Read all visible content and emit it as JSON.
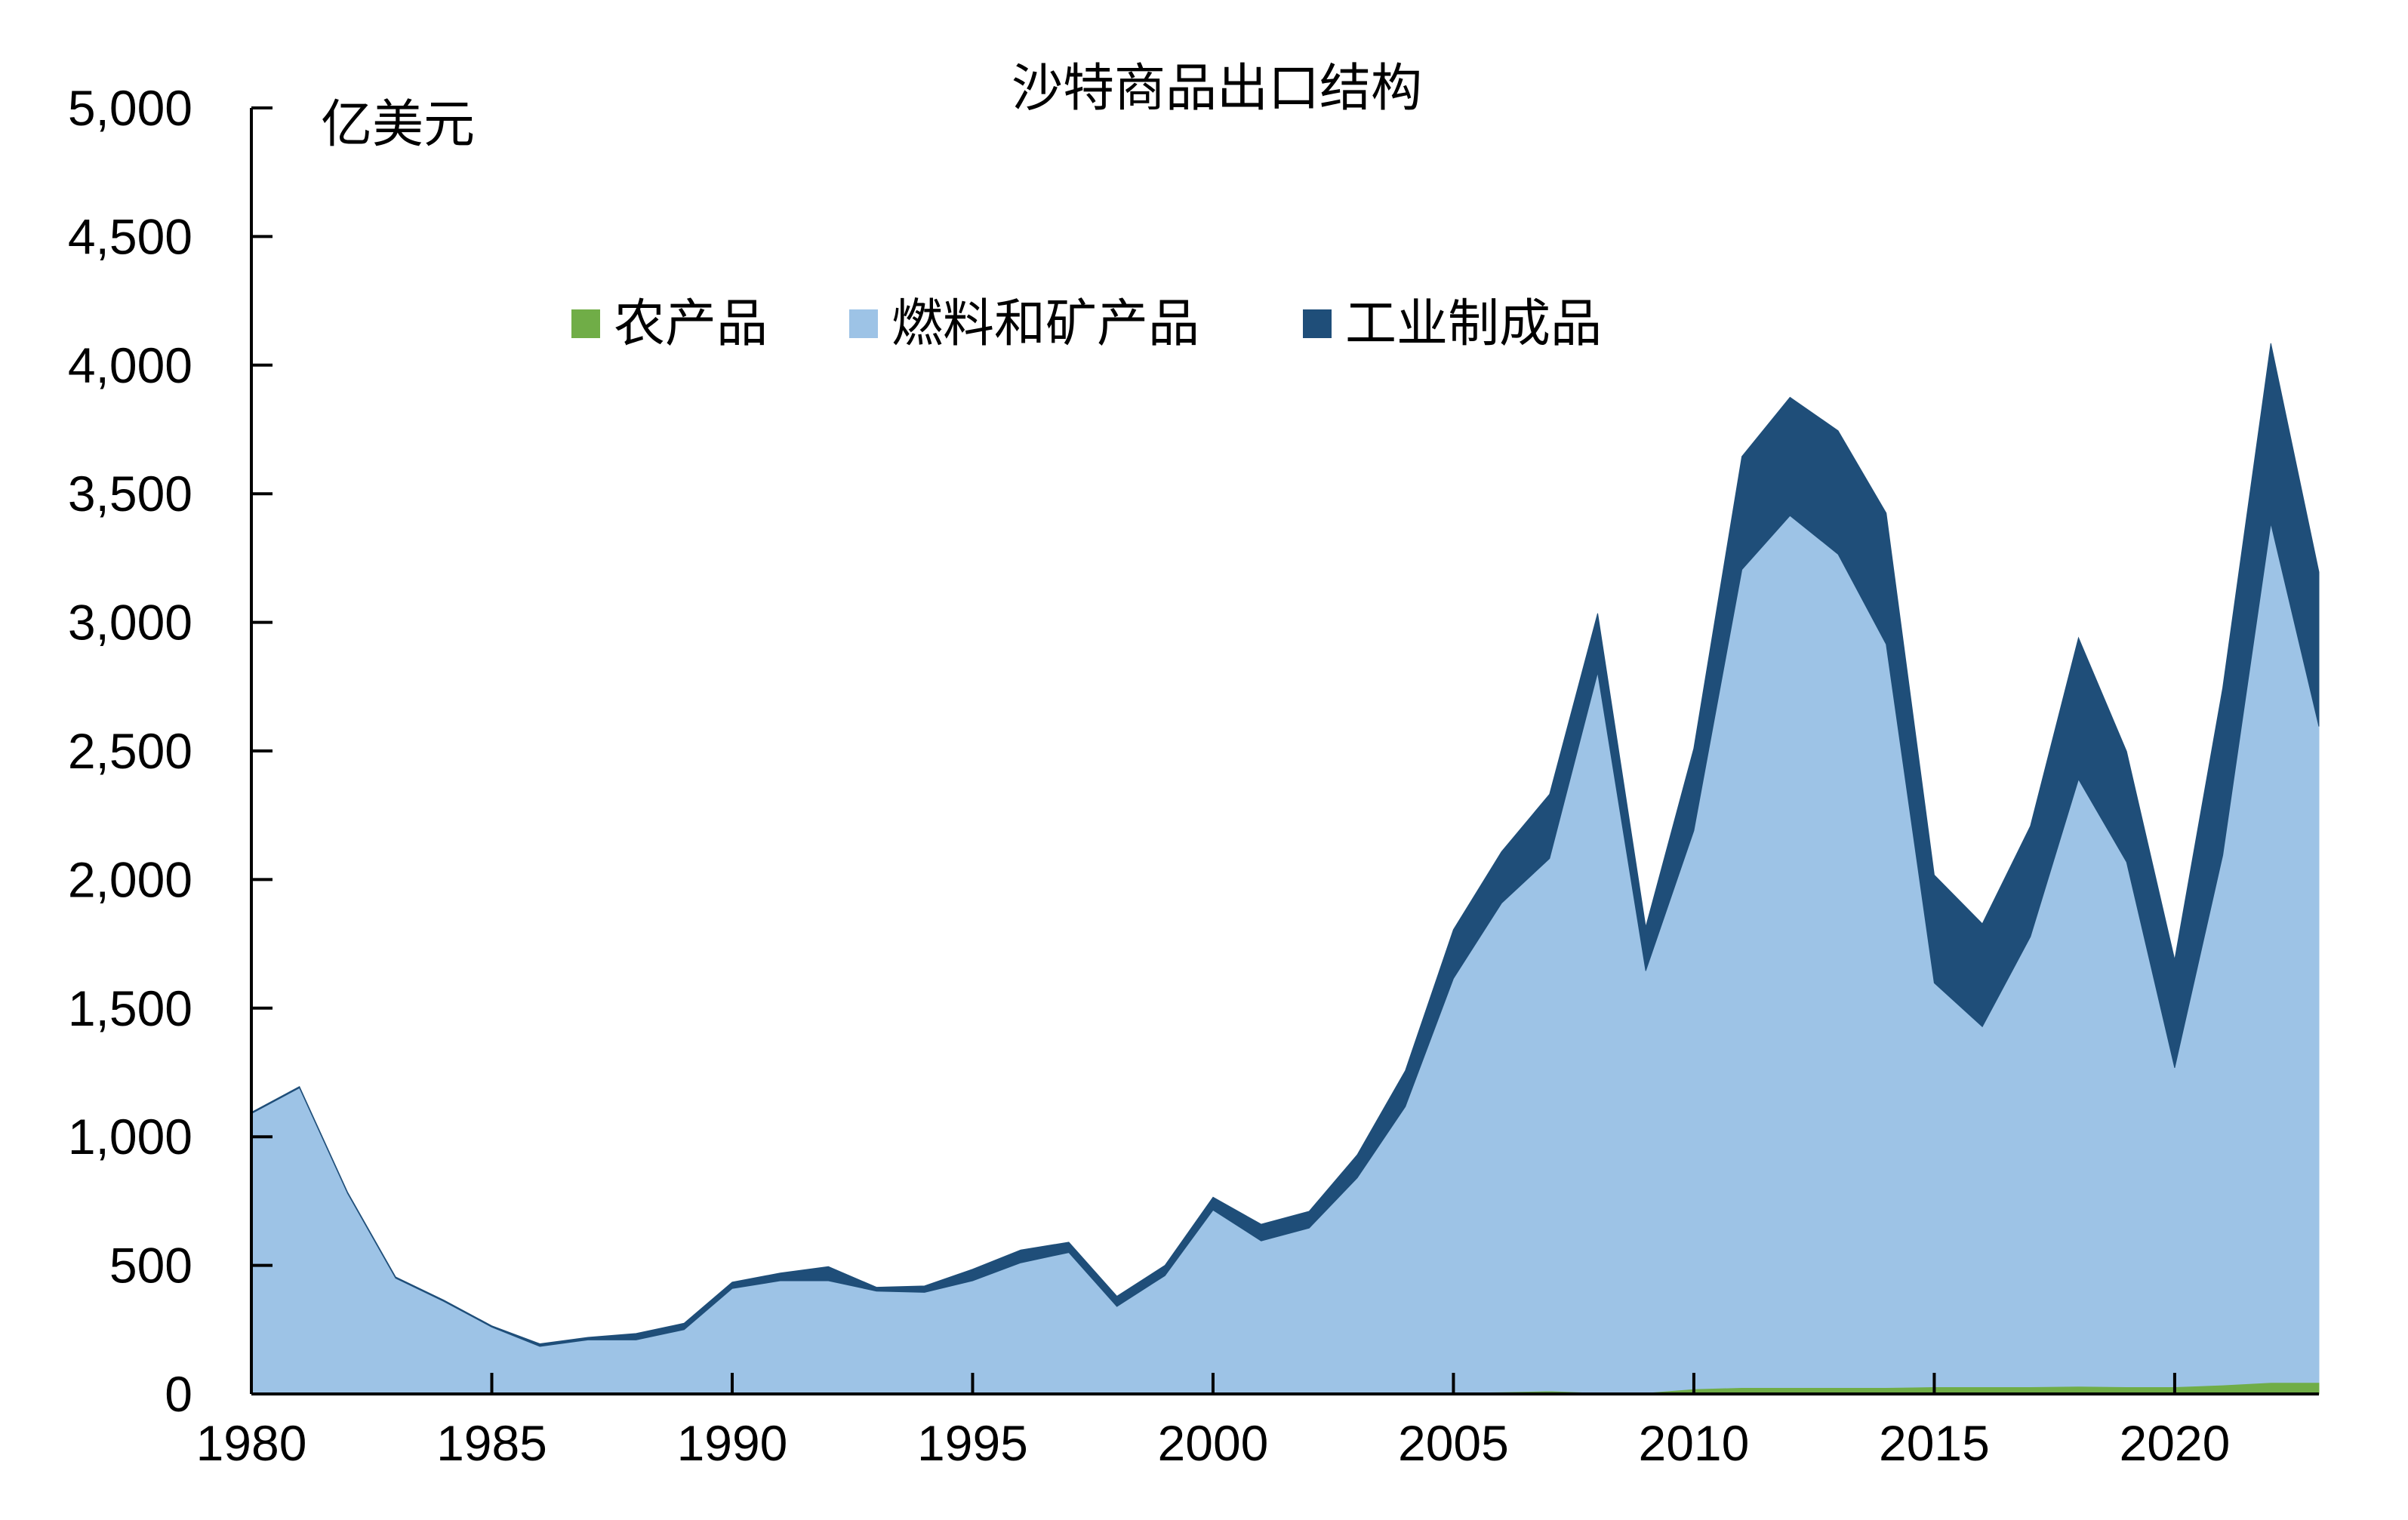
{
  "chart_data": {
    "type": "area",
    "stacked": true,
    "title": "沙特商品出口结构",
    "ylabel": "亿美元",
    "xlabel": "",
    "xlim": [
      1980,
      2023
    ],
    "ylim": [
      0,
      5000
    ],
    "x_ticks": [
      1980,
      1985,
      1990,
      1995,
      2000,
      2005,
      2010,
      2015,
      2020
    ],
    "y_ticks": [
      0,
      500,
      1000,
      1500,
      2000,
      2500,
      3000,
      3500,
      4000,
      4500,
      5000
    ],
    "y_tick_labels": [
      "0",
      "500",
      "1,000",
      "1,500",
      "2,000",
      "2,500",
      "3,000",
      "3,500",
      "4,000",
      "4,500",
      "5,000"
    ],
    "x_tick_labels": [
      "1980",
      "1985",
      "1990",
      "1995",
      "2000",
      "2005",
      "2010",
      "2015",
      "2020"
    ],
    "grid": false,
    "legend_position": "top",
    "x": [
      1980,
      1981,
      1982,
      1983,
      1984,
      1985,
      1986,
      1987,
      1988,
      1989,
      1990,
      1991,
      1992,
      1993,
      1994,
      1995,
      1996,
      1997,
      1998,
      1999,
      2000,
      2001,
      2002,
      2003,
      2004,
      2005,
      2006,
      2007,
      2008,
      2009,
      2010,
      2011,
      2012,
      2013,
      2014,
      2015,
      2016,
      2017,
      2018,
      2019,
      2020,
      2021,
      2022,
      2023
    ],
    "series": [
      {
        "name": "农产品",
        "color": "#70ad47",
        "values": [
          0,
          0,
          0,
          0,
          0,
          0,
          0,
          0,
          0,
          0,
          0,
          0,
          0,
          0,
          0,
          0,
          0,
          0,
          0,
          0,
          0,
          0,
          0,
          0,
          2,
          5,
          8,
          12,
          5,
          5,
          20,
          25,
          25,
          25,
          25,
          28,
          28,
          28,
          30,
          28,
          28,
          35,
          45,
          45
        ]
      },
      {
        "name": "燃料和矿产品",
        "color": "#9dc3e6",
        "values": [
          1090,
          1190,
          780,
          450,
          360,
          260,
          185,
          210,
          210,
          250,
          410,
          440,
          440,
          400,
          395,
          440,
          510,
          550,
          340,
          460,
          715,
          595,
          645,
          840,
          1115,
          1610,
          1900,
          2070,
          2800,
          1640,
          2170,
          3180,
          3390,
          3240,
          2890,
          1570,
          1400,
          1750,
          2360,
          2040,
          1240,
          2060,
          3340,
          2550
        ]
      },
      {
        "name": "工业制成品",
        "color": "#1f4e79",
        "values": [
          5,
          5,
          5,
          5,
          5,
          5,
          10,
          10,
          25,
          25,
          25,
          30,
          55,
          15,
          25,
          45,
          50,
          40,
          40,
          40,
          50,
          65,
          65,
          90,
          140,
          190,
          200,
          250,
          230,
          170,
          320,
          440,
          460,
          480,
          510,
          420,
          400,
          430,
          550,
          430,
          420,
          650,
          700,
          600
        ]
      }
    ]
  }
}
